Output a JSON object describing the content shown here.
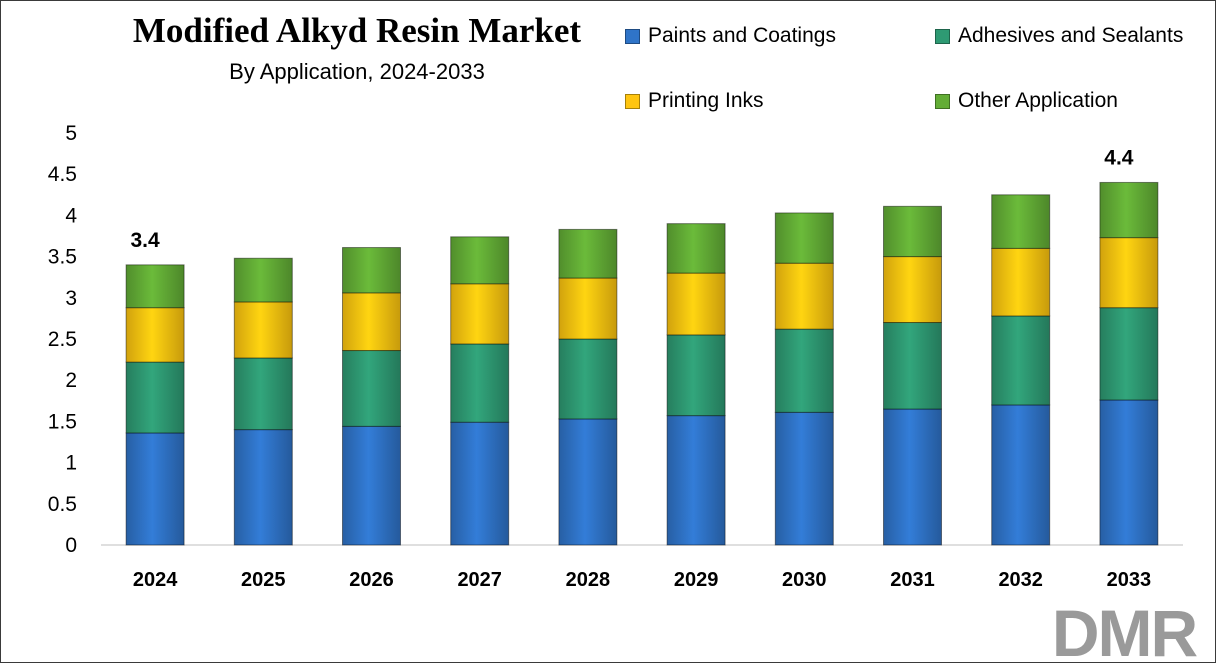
{
  "title": "Modified Alkyd Resin Market",
  "subtitle": "By Application, 2024-2033",
  "logo": "DMR",
  "chart_data": {
    "type": "bar",
    "stacked": true,
    "categories": [
      "2024",
      "2025",
      "2026",
      "2027",
      "2028",
      "2029",
      "2030",
      "2031",
      "2032",
      "2033"
    ],
    "series": [
      {
        "name": "Paints and Coatings",
        "color": "#2f74c8",
        "values": [
          1.36,
          1.4,
          1.44,
          1.49,
          1.53,
          1.57,
          1.61,
          1.65,
          1.7,
          1.76
        ]
      },
      {
        "name": "Adhesives and Sealants",
        "color": "#2e9a73",
        "values": [
          0.86,
          0.87,
          0.92,
          0.95,
          0.97,
          0.98,
          1.01,
          1.05,
          1.08,
          1.12
        ]
      },
      {
        "name": "Printing Inks",
        "color": "#ffc510",
        "values": [
          0.66,
          0.68,
          0.7,
          0.73,
          0.74,
          0.75,
          0.8,
          0.8,
          0.82,
          0.85
        ]
      },
      {
        "name": "Other Application",
        "color": "#63ad36",
        "values": [
          0.52,
          0.53,
          0.55,
          0.57,
          0.59,
          0.6,
          0.61,
          0.61,
          0.65,
          0.67
        ]
      }
    ],
    "ylim": [
      0,
      5
    ],
    "yticks": [
      "0",
      "0.5",
      "1",
      "1.5",
      "2",
      "2.5",
      "3",
      "3.5",
      "4",
      "4.5",
      "5"
    ],
    "xlabel": "",
    "ylabel": "",
    "grid": false,
    "legend_position": "top-right",
    "annotations": [
      {
        "category": "2024",
        "text": "3.4"
      },
      {
        "category": "2033",
        "text": "4.4"
      }
    ]
  }
}
